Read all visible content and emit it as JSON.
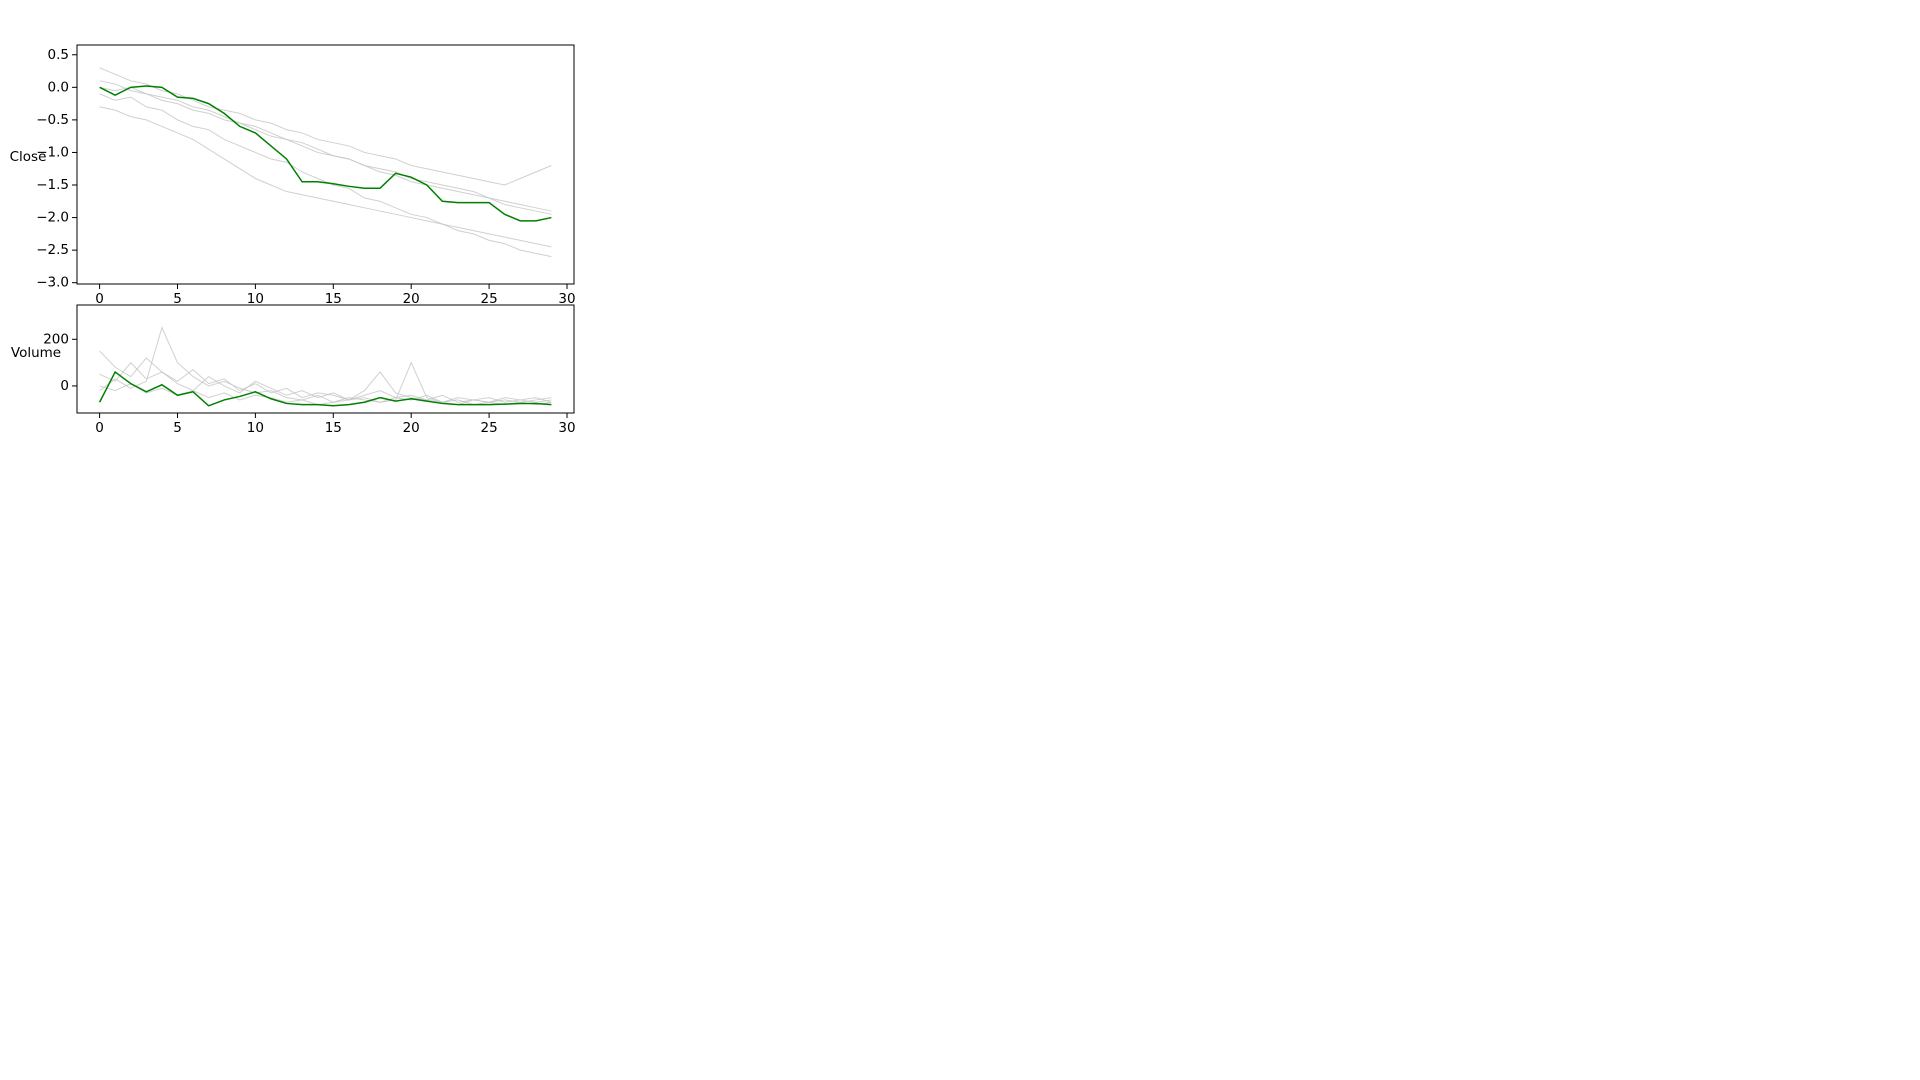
{
  "chart_data": [
    {
      "type": "line",
      "ylabel": "Close",
      "x": [
        0,
        1,
        2,
        3,
        4,
        5,
        6,
        7,
        8,
        9,
        10,
        11,
        12,
        13,
        14,
        15,
        16,
        17,
        18,
        19,
        20,
        21,
        22,
        23,
        24,
        25,
        26,
        27,
        28,
        29
      ],
      "xlim": [
        -1.45,
        30.45
      ],
      "xticks": [
        0,
        5,
        10,
        15,
        20,
        25,
        30
      ],
      "ylim": [
        -3.02,
        0.65
      ],
      "yticks": [
        0.5,
        {
          "value": 0,
          "label": "0.0"
        },
        {
          "value": -0.5,
          "label": "−0.5"
        },
        {
          "value": -1,
          "label": "−1.0"
        },
        {
          "value": -1.5,
          "label": "−1.5"
        },
        {
          "value": -2,
          "label": "−2.0"
        },
        {
          "value": -2.5,
          "label": "−2.5"
        },
        {
          "value": -3,
          "label": "−3.0"
        }
      ],
      "series": [
        {
          "color": "#c4c4c4",
          "values": [
            0.1,
            0.05,
            -0.05,
            -0.1,
            -0.2,
            -0.25,
            -0.35,
            -0.4,
            -0.5,
            -0.55,
            -0.65,
            -0.75,
            -0.8,
            -0.9,
            -1.0,
            -1.05,
            -1.1,
            -1.2,
            -1.25,
            -1.3,
            -1.4,
            -1.45,
            -1.5,
            -1.55,
            -1.6,
            -1.7,
            -1.75,
            -1.8,
            -1.85,
            -1.9
          ]
        },
        {
          "color": "#c4c4c4",
          "values": [
            -0.1,
            -0.2,
            -0.15,
            -0.3,
            -0.35,
            -0.5,
            -0.6,
            -0.65,
            -0.8,
            -0.9,
            -1.0,
            -1.1,
            -1.15,
            -1.3,
            -1.4,
            -1.5,
            -1.55,
            -1.7,
            -1.75,
            -1.85,
            -1.95,
            -2.0,
            -2.1,
            -2.2,
            -2.25,
            -2.35,
            -2.4,
            -2.5,
            -2.55,
            -2.6
          ]
        },
        {
          "color": "#c4c4c4",
          "values": [
            0.3,
            0.2,
            0.1,
            0.05,
            -0.05,
            -0.1,
            -0.2,
            -0.3,
            -0.35,
            -0.4,
            -0.5,
            -0.55,
            -0.65,
            -0.7,
            -0.8,
            -0.85,
            -0.9,
            -1.0,
            -1.05,
            -1.1,
            -1.2,
            -1.25,
            -1.3,
            -1.35,
            -1.4,
            -1.45,
            -1.5,
            -1.4,
            -1.3,
            -1.2
          ]
        },
        {
          "color": "#c4c4c4",
          "values": [
            -0.3,
            -0.35,
            -0.45,
            -0.5,
            -0.6,
            -0.7,
            -0.8,
            -0.95,
            -1.1,
            -1.25,
            -1.4,
            -1.5,
            -1.6,
            -1.65,
            -1.7,
            -1.75,
            -1.8,
            -1.85,
            -1.9,
            -1.95,
            -2.0,
            -2.05,
            -2.1,
            -2.15,
            -2.2,
            -2.25,
            -2.3,
            -2.35,
            -2.4,
            -2.45
          ]
        },
        {
          "color": "#c4c4c4",
          "values": [
            0.0,
            -0.05,
            0.0,
            -0.1,
            -0.15,
            -0.2,
            -0.3,
            -0.35,
            -0.45,
            -0.55,
            -0.6,
            -0.7,
            -0.8,
            -0.85,
            -0.95,
            -1.05,
            -1.1,
            -1.2,
            -1.3,
            -1.35,
            -1.45,
            -1.5,
            -1.55,
            -1.6,
            -1.65,
            -1.7,
            -1.8,
            -1.85,
            -1.9,
            -1.95
          ]
        },
        {
          "color": "#008000",
          "values": [
            0.0,
            -0.12,
            0.0,
            0.02,
            0.0,
            -0.15,
            -0.17,
            -0.25,
            -0.4,
            -0.6,
            -0.7,
            -0.9,
            -1.1,
            -1.45,
            -1.45,
            -1.48,
            -1.52,
            -1.55,
            -1.55,
            -1.32,
            -1.38,
            -1.5,
            -1.75,
            -1.77,
            -1.77,
            -1.77,
            -1.95,
            -2.05,
            -2.05,
            -2.0
          ]
        }
      ]
    },
    {
      "type": "line",
      "ylabel": "Volume",
      "x": [
        0,
        1,
        2,
        3,
        4,
        5,
        6,
        7,
        8,
        9,
        10,
        11,
        12,
        13,
        14,
        15,
        16,
        17,
        18,
        19,
        20,
        21,
        22,
        23,
        24,
        25,
        26,
        27,
        28,
        29
      ],
      "xlim": [
        -1.45,
        30.45
      ],
      "xticks": [
        0,
        5,
        10,
        15,
        20,
        25,
        30
      ],
      "ylim": [
        -116,
        347
      ],
      "yticks": [
        0,
        200
      ],
      "series": [
        {
          "color": "#c4c4c4",
          "values": [
            50,
            20,
            100,
            30,
            60,
            10,
            -20,
            40,
            0,
            -30,
            20,
            -10,
            -40,
            -20,
            -50,
            -30,
            -60,
            -40,
            -20,
            -50,
            -60,
            -40,
            -70,
            -50,
            -60,
            -70,
            -50,
            -60,
            -70,
            -60
          ]
        },
        {
          "color": "#c4c4c4",
          "values": [
            150,
            80,
            40,
            120,
            60,
            20,
            70,
            10,
            30,
            -20,
            10,
            -30,
            -10,
            -50,
            -30,
            -40,
            -60,
            -20,
            60,
            -30,
            -50,
            -60,
            -40,
            -70,
            -60,
            -50,
            -70,
            -60,
            -50,
            -70
          ]
        },
        {
          "color": "#c4c4c4",
          "values": [
            -20,
            30,
            -10,
            20,
            250,
            100,
            40,
            0,
            20,
            -10,
            -30,
            -20,
            -50,
            -60,
            -40,
            -70,
            -50,
            -60,
            -70,
            -50,
            -40,
            -60,
            -70,
            -60,
            -80,
            -70,
            -60,
            -70,
            -80,
            -70
          ]
        },
        {
          "color": "#c4c4c4",
          "values": [
            0,
            -20,
            10,
            -30,
            -10,
            -40,
            -20,
            -50,
            -30,
            -60,
            -40,
            -50,
            -70,
            -60,
            -80,
            -70,
            -60,
            -50,
            -70,
            -60,
            100,
            -50,
            -70,
            -80,
            -60,
            -70,
            -80,
            -70,
            -60,
            -50
          ]
        },
        {
          "color": "#008000",
          "values": [
            -70,
            60,
            10,
            -25,
            5,
            -40,
            -25,
            -85,
            -60,
            -45,
            -25,
            -55,
            -75,
            -80,
            -80,
            -85,
            -80,
            -70,
            -50,
            -65,
            -55,
            -65,
            -75,
            -80,
            -80,
            -80,
            -78,
            -75,
            -75,
            -80
          ]
        }
      ]
    }
  ]
}
